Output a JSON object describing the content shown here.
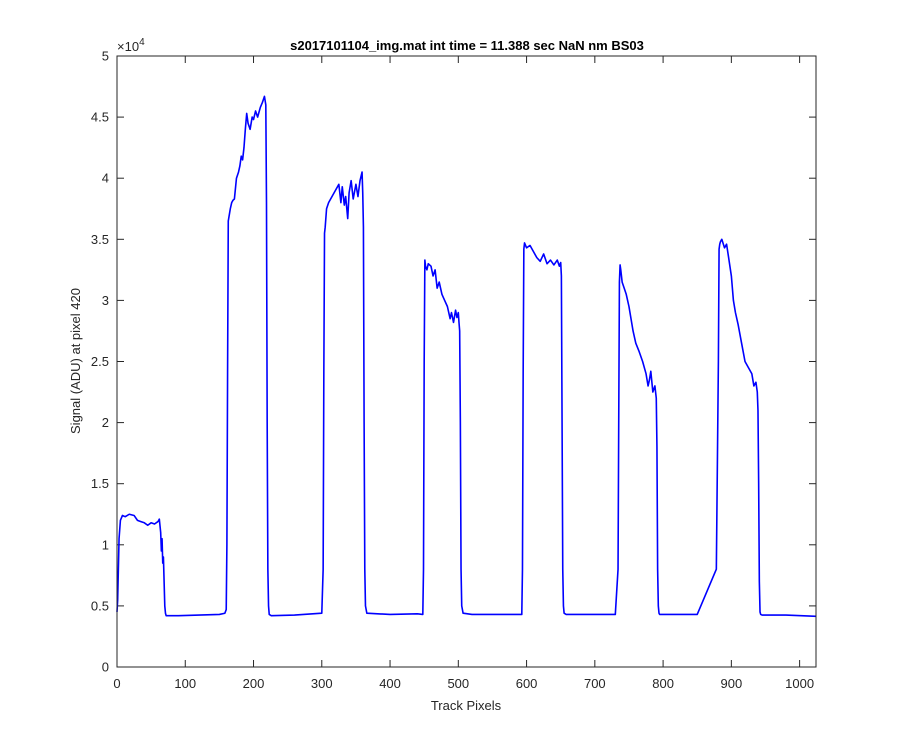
{
  "chart_data": {
    "type": "line",
    "title": "s2017101104_img.mat int time = 11.388 sec  NaN nm BS03",
    "xlabel": "Track Pixels",
    "ylabel": "Signal (ADU) at pixel 420",
    "exponent_label": "×10",
    "exponent_power": "4",
    "xlim": [
      0,
      1024
    ],
    "ylim": [
      0,
      50000
    ],
    "xticks": [
      0,
      100,
      200,
      300,
      400,
      500,
      600,
      700,
      800,
      900,
      1000
    ],
    "xtick_labels": [
      "0",
      "100",
      "200",
      "300",
      "400",
      "500",
      "600",
      "700",
      "800",
      "900",
      "1000"
    ],
    "yticks": [
      0,
      5000,
      10000,
      15000,
      20000,
      25000,
      30000,
      35000,
      40000,
      45000,
      50000
    ],
    "ytick_labels": [
      "0",
      "0.5",
      "1",
      "1.5",
      "2",
      "2.5",
      "3",
      "3.5",
      "4",
      "4.5",
      "5"
    ],
    "grid": false,
    "line_color": "#0000ff",
    "series": [
      {
        "x": [
          0,
          1,
          3,
          5,
          8,
          12,
          18,
          25,
          30,
          35,
          40,
          45,
          50,
          55,
          60,
          62,
          64,
          65,
          66,
          67,
          68,
          69,
          70,
          71,
          72,
          75,
          90,
          120,
          150,
          158,
          160,
          161,
          162,
          163,
          166,
          168,
          170,
          172,
          175,
          178,
          180,
          182,
          184,
          186,
          188,
          190,
          192,
          195,
          198,
          200,
          203,
          206,
          210,
          213,
          216,
          218,
          219,
          220,
          221,
          222,
          223,
          226,
          260,
          300,
          302,
          303,
          304,
          305,
          307,
          310,
          315,
          320,
          325,
          328,
          330,
          333,
          335,
          338,
          340,
          343,
          346,
          350,
          353,
          356,
          359,
          360,
          361,
          362,
          363,
          364,
          366,
          400,
          440,
          448,
          449,
          450,
          451,
          452,
          454,
          456,
          460,
          463,
          466,
          469,
          472,
          476,
          480,
          484,
          488,
          490,
          493,
          496,
          498,
          500,
          501,
          502,
          503,
          504,
          505,
          507,
          520,
          570,
          590,
          593,
          594,
          595,
          596,
          597,
          600,
          605,
          610,
          615,
          620,
          625,
          630,
          635,
          640,
          645,
          648,
          650,
          651,
          652,
          653,
          654,
          655,
          658,
          700,
          730,
          734,
          735,
          736,
          737,
          738,
          740,
          743,
          746,
          750,
          753,
          756,
          760,
          765,
          770,
          775,
          778,
          780,
          782,
          785,
          788,
          790,
          791,
          792,
          793,
          794,
          795,
          797,
          850,
          878,
          881,
          882,
          883,
          884,
          886,
          890,
          893,
          896,
          900,
          903,
          906,
          910,
          915,
          920,
          925,
          930,
          933,
          936,
          938,
          939,
          940,
          941,
          942,
          943,
          945,
          980,
          1024
        ],
        "y": [
          4500,
          5500,
          10500,
          12000,
          12400,
          12300,
          12500,
          12400,
          12000,
          11900,
          11800,
          11600,
          11800,
          11700,
          11900,
          12100,
          11000,
          9500,
          10500,
          8500,
          9000,
          7000,
          5000,
          4400,
          4200,
          4200,
          4200,
          4250,
          4300,
          4400,
          4700,
          10000,
          24000,
          36500,
          37500,
          38000,
          38200,
          38300,
          40000,
          40500,
          41000,
          41800,
          41500,
          42500,
          44000,
          45300,
          44500,
          44000,
          45000,
          44800,
          45500,
          45000,
          45800,
          46200,
          46700,
          46000,
          38000,
          20000,
          8000,
          5000,
          4300,
          4200,
          4250,
          4400,
          8000,
          24000,
          35500,
          36000,
          37500,
          38000,
          38500,
          39000,
          39500,
          38000,
          39300,
          37800,
          38500,
          36700,
          38800,
          39800,
          38300,
          39500,
          38500,
          39800,
          40500,
          38800,
          36000,
          20000,
          8000,
          5000,
          4400,
          4300,
          4350,
          4300,
          8000,
          25000,
          33300,
          32800,
          32500,
          33000,
          32800,
          32000,
          32500,
          31000,
          31500,
          30500,
          30000,
          29500,
          28500,
          29000,
          28200,
          29200,
          28600,
          29000,
          28200,
          27500,
          20000,
          8000,
          5000,
          4400,
          4300,
          4300,
          4300,
          4300,
          8000,
          24000,
          34200,
          34700,
          34300,
          34500,
          34000,
          33500,
          33200,
          33800,
          33000,
          33300,
          32900,
          33300,
          32800,
          33100,
          32000,
          20000,
          8000,
          5000,
          4400,
          4300,
          4300,
          4300,
          8000,
          20000,
          31500,
          32900,
          32500,
          31500,
          31000,
          30500,
          29500,
          28500,
          27500,
          26500,
          25800,
          25000,
          24000,
          23000,
          23500,
          24200,
          22500,
          23000,
          22000,
          18000,
          8000,
          5000,
          4400,
          4300,
          4300,
          4300,
          8000,
          25000,
          34200,
          34600,
          34800,
          35000,
          34300,
          34600,
          33500,
          32000,
          30000,
          29000,
          28000,
          26500,
          25000,
          24500,
          24000,
          23000,
          23300,
          22500,
          21000,
          15000,
          7000,
          4500,
          4300,
          4250,
          4250,
          4150
        ]
      }
    ]
  }
}
